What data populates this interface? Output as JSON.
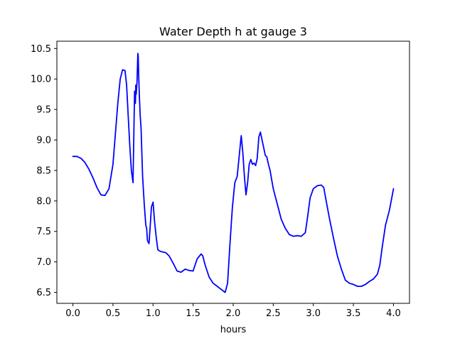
{
  "chart_data": {
    "type": "line",
    "title": "Water Depth h at gauge 3",
    "xlabel": "hours",
    "ylabel": "",
    "xlim": [
      -0.2,
      4.2
    ],
    "ylim": [
      6.32,
      10.62
    ],
    "x_ticks": [
      0.0,
      0.5,
      1.0,
      1.5,
      2.0,
      2.5,
      3.0,
      3.5,
      4.0
    ],
    "x_tick_labels": [
      "0.0",
      "0.5",
      "1.0",
      "1.5",
      "2.0",
      "2.5",
      "3.0",
      "3.5",
      "4.0"
    ],
    "y_ticks": [
      6.5,
      7.0,
      7.5,
      8.0,
      8.5,
      9.0,
      9.5,
      10.0,
      10.5
    ],
    "y_tick_labels": [
      "6.5",
      "7.0",
      "7.5",
      "8.0",
      "8.5",
      "9.0",
      "9.5",
      "10.0",
      "10.5"
    ],
    "grid": false,
    "legend": "none",
    "series": [
      {
        "color": "#0000ff",
        "x": [
          0.0,
          0.05,
          0.1,
          0.15,
          0.2,
          0.25,
          0.3,
          0.35,
          0.4,
          0.45,
          0.5,
          0.53,
          0.56,
          0.59,
          0.62,
          0.65,
          0.67,
          0.69,
          0.71,
          0.73,
          0.75,
          0.77,
          0.78,
          0.785,
          0.79,
          0.8,
          0.81,
          0.815,
          0.82,
          0.825,
          0.83,
          0.84,
          0.85,
          0.87,
          0.89,
          0.91,
          0.92,
          0.93,
          0.95,
          0.97,
          0.98,
          1.0,
          1.02,
          1.04,
          1.06,
          1.08,
          1.1,
          1.13,
          1.16,
          1.2,
          1.25,
          1.3,
          1.35,
          1.4,
          1.45,
          1.5,
          1.55,
          1.6,
          1.62,
          1.65,
          1.7,
          1.75,
          1.8,
          1.85,
          1.9,
          1.93,
          1.96,
          1.99,
          2.02,
          2.05,
          2.08,
          2.1,
          2.12,
          2.14,
          2.16,
          2.18,
          2.2,
          2.22,
          2.24,
          2.26,
          2.28,
          2.3,
          2.32,
          2.34,
          2.36,
          2.38,
          2.4,
          2.42,
          2.44,
          2.46,
          2.48,
          2.5,
          2.55,
          2.6,
          2.65,
          2.7,
          2.75,
          2.8,
          2.85,
          2.9,
          2.93,
          2.96,
          3.0,
          3.05,
          3.1,
          3.13,
          3.16,
          3.2,
          3.25,
          3.3,
          3.35,
          3.4,
          3.45,
          3.5,
          3.55,
          3.6,
          3.65,
          3.7,
          3.75,
          3.8,
          3.83,
          3.86,
          3.9,
          3.95,
          4.0
        ],
        "y": [
          8.73,
          8.73,
          8.7,
          8.63,
          8.52,
          8.38,
          8.22,
          8.1,
          8.09,
          8.2,
          8.6,
          9.1,
          9.6,
          10.0,
          10.15,
          10.14,
          9.9,
          9.4,
          8.9,
          8.5,
          8.3,
          9.8,
          9.6,
          9.9,
          9.75,
          9.95,
          10.42,
          10.38,
          10.1,
          9.9,
          9.7,
          9.4,
          9.2,
          8.4,
          7.95,
          7.6,
          7.55,
          7.35,
          7.3,
          7.7,
          7.9,
          7.98,
          7.65,
          7.4,
          7.2,
          7.18,
          7.17,
          7.16,
          7.15,
          7.1,
          6.98,
          6.85,
          6.83,
          6.88,
          6.86,
          6.85,
          7.05,
          7.13,
          7.1,
          6.95,
          6.75,
          6.65,
          6.6,
          6.55,
          6.5,
          6.65,
          7.3,
          7.9,
          8.3,
          8.4,
          8.8,
          9.07,
          8.8,
          8.4,
          8.1,
          8.3,
          8.6,
          8.68,
          8.6,
          8.62,
          8.58,
          8.7,
          9.05,
          9.13,
          9.0,
          8.88,
          8.75,
          8.72,
          8.6,
          8.5,
          8.35,
          8.2,
          7.95,
          7.7,
          7.55,
          7.45,
          7.42,
          7.43,
          7.42,
          7.48,
          7.75,
          8.05,
          8.2,
          8.25,
          8.26,
          8.22,
          8.0,
          7.72,
          7.4,
          7.1,
          6.88,
          6.7,
          6.65,
          6.63,
          6.6,
          6.6,
          6.63,
          6.68,
          6.72,
          6.8,
          6.95,
          7.25,
          7.6,
          7.85,
          8.2
        ]
      }
    ]
  }
}
